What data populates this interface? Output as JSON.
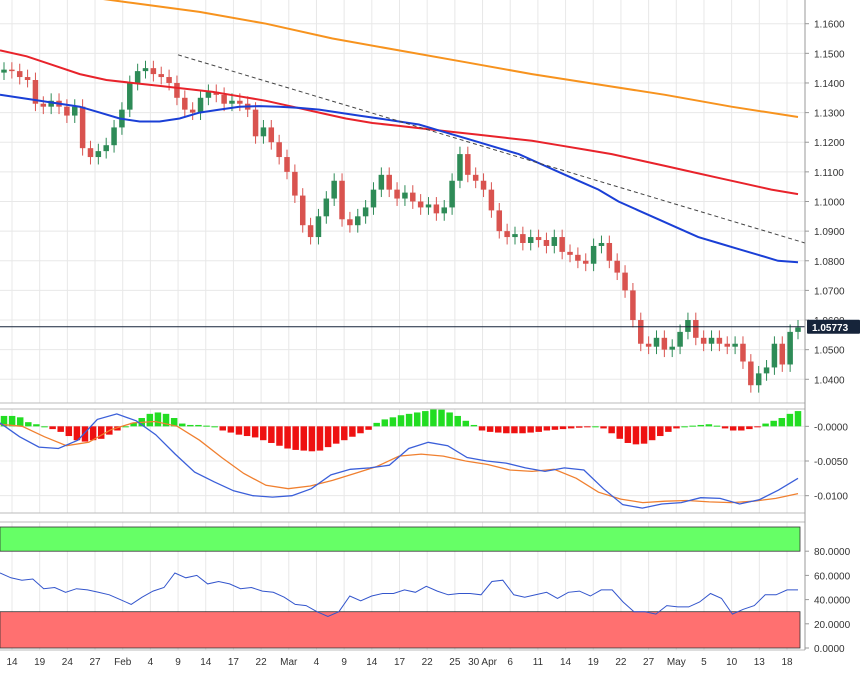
{
  "colors": {
    "bull": "#2e8b57",
    "bear": "#d9534f",
    "sma_fast": "#1a3fd6",
    "sma_mid": "#e8232b",
    "sma_slow": "#f7931e",
    "trendline": "#444444",
    "macd_line": "#3b5fd9",
    "signal_line": "#f08030",
    "hist_pos": "#22dd22",
    "hist_neg": "#ee1111",
    "rsi_line": "#3355cc",
    "overbought_fill": "#66ff66",
    "oversold_fill": "#ff7070",
    "grid": "#e8e8e8",
    "price_tag": "#16243a"
  },
  "last_price_label": "1.05773",
  "chart_data": [
    {
      "type": "candlestick",
      "panel": "price",
      "ylim": [
        1.032,
        1.168
      ],
      "y_ticks": [
        "1.1600",
        "1.1500",
        "1.1400",
        "1.1300",
        "1.1200",
        "1.1100",
        "1.1000",
        "1.0900",
        "1.0800",
        "1.0700",
        "1.0600",
        "1.0500",
        "1.0400"
      ],
      "last_price": 1.05773,
      "closes": [
        1.1445,
        1.144,
        1.142,
        1.141,
        1.133,
        1.132,
        1.134,
        1.132,
        1.129,
        1.132,
        1.118,
        1.115,
        1.117,
        1.119,
        1.125,
        1.131,
        1.14,
        1.144,
        1.145,
        1.143,
        1.142,
        1.14,
        1.135,
        1.131,
        1.13,
        1.135,
        1.137,
        1.136,
        1.133,
        1.134,
        1.133,
        1.131,
        1.122,
        1.125,
        1.12,
        1.115,
        1.11,
        1.102,
        1.092,
        1.088,
        1.095,
        1.101,
        1.107,
        1.094,
        1.092,
        1.095,
        1.098,
        1.104,
        1.109,
        1.104,
        1.101,
        1.103,
        1.1,
        1.098,
        1.099,
        1.096,
        1.098,
        1.107,
        1.116,
        1.109,
        1.107,
        1.104,
        1.097,
        1.09,
        1.088,
        1.089,
        1.086,
        1.088,
        1.087,
        1.085,
        1.088,
        1.083,
        1.082,
        1.08,
        1.079,
        1.085,
        1.086,
        1.08,
        1.076,
        1.07,
        1.06,
        1.052,
        1.051,
        1.054,
        1.05,
        1.051,
        1.056,
        1.06,
        1.054,
        1.052,
        1.054,
        1.052,
        1.051,
        1.052,
        1.046,
        1.038,
        1.042,
        1.044,
        1.052,
        1.045,
        1.056,
        1.0575
      ],
      "sma_fast_values": [
        1.136,
        1.135,
        1.134,
        1.133,
        1.132,
        1.13,
        1.128,
        1.127,
        1.127,
        1.128,
        1.13,
        1.131,
        1.132,
        1.1322,
        1.132,
        1.1316,
        1.131,
        1.13,
        1.129,
        1.128,
        1.127,
        1.126,
        1.124,
        1.122,
        1.12,
        1.118,
        1.116,
        1.113,
        1.11,
        1.107,
        1.104,
        1.1,
        1.097,
        1.094,
        1.091,
        1.088,
        1.086,
        1.084,
        1.082,
        1.08,
        1.0795
      ],
      "sma_mid_values": [
        1.151,
        1.149,
        1.146,
        1.143,
        1.141,
        1.14,
        1.139,
        1.138,
        1.137,
        1.1355,
        1.134,
        1.132,
        1.13,
        1.128,
        1.1265,
        1.1255,
        1.1245,
        1.1235,
        1.1225,
        1.1215,
        1.1205,
        1.119,
        1.1175,
        1.116,
        1.114,
        1.112,
        1.11,
        1.108,
        1.106,
        1.104,
        1.1025
      ],
      "sma_slow_values": [
        1.172,
        1.17,
        1.167,
        1.164,
        1.16,
        1.155,
        1.151,
        1.147,
        1.143,
        1.1395,
        1.136,
        1.132,
        1.1285
      ],
      "trendline_values": [
        1.1495,
        1.086
      ]
    },
    {
      "type": "histogram_with_lines",
      "panel": "macd",
      "ylim": [
        -0.0125,
        0.0025
      ],
      "y_ticks": [
        "-0.0000",
        "-0.0050",
        "-0.0100"
      ],
      "histogram": [
        0.0015,
        0.0015,
        0.0013,
        0.0006,
        0.0003,
        0.0,
        -0.0004,
        -0.0008,
        -0.0014,
        -0.002,
        -0.0022,
        -0.002,
        -0.0018,
        -0.0012,
        -0.0006,
        0.0,
        0.0005,
        0.0012,
        0.0018,
        0.002,
        0.0018,
        0.0012,
        0.0004,
        0.0002,
        0.0002,
        0.0001,
        0.0,
        -0.0006,
        -0.0009,
        -0.0012,
        -0.0014,
        -0.0016,
        -0.002,
        -0.0024,
        -0.0028,
        -0.0032,
        -0.0034,
        -0.0035,
        -0.0036,
        -0.0035,
        -0.003,
        -0.0025,
        -0.002,
        -0.0015,
        -0.001,
        -0.0005,
        0.0005,
        0.001,
        0.0013,
        0.0016,
        0.0018,
        0.002,
        0.0022,
        0.0025,
        0.0024,
        0.002,
        0.0015,
        0.0008,
        0.0002,
        -0.0006,
        -0.0008,
        -0.0009,
        -0.001,
        -0.001,
        -0.001,
        -0.0009,
        -0.0008,
        -0.0006,
        -0.0005,
        -0.0004,
        -0.0003,
        -0.0002,
        -0.0001,
        0.0,
        -0.0003,
        -0.001,
        -0.0018,
        -0.0024,
        -0.0026,
        -0.0025,
        -0.002,
        -0.0014,
        -0.0008,
        -0.0003,
        0.0,
        0.0001,
        0.0002,
        0.0003,
        0.0001,
        -0.0003,
        -0.0006,
        -0.0006,
        -0.0004,
        -0.0001,
        0.0004,
        0.0008,
        0.0012,
        0.0018,
        0.0022
      ],
      "macd_values": [
        0.0005,
        -0.0015,
        -0.003,
        -0.0032,
        -0.002,
        0.001,
        0.0018,
        0.0008,
        -0.0012,
        -0.004,
        -0.0066,
        -0.008,
        -0.0093,
        -0.01,
        -0.0102,
        -0.01,
        -0.009,
        -0.007,
        -0.0062,
        -0.006,
        -0.0056,
        -0.0032,
        -0.0023,
        -0.0028,
        -0.0045,
        -0.005,
        -0.0053,
        -0.006,
        -0.0065,
        -0.006,
        -0.0063,
        -0.009,
        -0.0113,
        -0.0118,
        -0.0112,
        -0.011,
        -0.0103,
        -0.0104,
        -0.0112,
        -0.0106,
        -0.0092,
        -0.0075
      ],
      "signal_values": [
        0.0003,
        0.0,
        -0.0015,
        -0.0028,
        -0.0023,
        -0.0005,
        0.0005,
        0.0007,
        0.0,
        -0.002,
        -0.0045,
        -0.0068,
        -0.0085,
        -0.009,
        -0.0086,
        -0.0078,
        -0.0068,
        -0.0058,
        -0.0043,
        -0.004,
        -0.0043,
        -0.005,
        -0.0055,
        -0.0063,
        -0.0065,
        -0.0062,
        -0.0075,
        -0.0095,
        -0.0105,
        -0.011,
        -0.0108,
        -0.0107,
        -0.0109,
        -0.011,
        -0.0108,
        -0.0104,
        -0.0097
      ]
    },
    {
      "type": "line",
      "panel": "rsi",
      "ylim": [
        0,
        100
      ],
      "y_ticks": [
        "80.0000",
        "60.0000",
        "40.0000",
        "20.0000",
        "0.0000"
      ],
      "overbought": 80,
      "oversold": 30,
      "values": [
        62,
        58,
        56,
        57,
        49,
        50,
        46,
        49,
        48,
        46,
        44,
        40,
        36,
        42,
        47,
        50,
        62,
        58,
        60,
        53,
        55,
        53,
        49,
        50,
        47,
        46,
        42,
        36,
        35,
        30,
        26,
        30,
        43,
        39,
        43,
        45,
        45,
        48,
        46,
        51,
        47,
        44,
        45,
        45,
        44,
        55,
        56,
        44,
        42,
        44,
        46,
        41,
        46,
        47,
        43,
        48,
        48,
        38,
        30,
        30,
        28,
        35,
        34,
        34,
        38,
        45,
        41,
        28,
        32,
        35,
        44,
        44,
        48,
        48
      ]
    }
  ],
  "x_axis": {
    "labels": [
      "14",
      "19",
      "24",
      "27",
      "Feb",
      "4",
      "9",
      "14",
      "17",
      "22",
      "Mar",
      "4",
      "9",
      "14",
      "17",
      "22",
      "25",
      "30 Apr",
      "6",
      "11",
      "14",
      "19",
      "22",
      "27",
      "May",
      "5",
      "10",
      "13",
      "18"
    ]
  }
}
